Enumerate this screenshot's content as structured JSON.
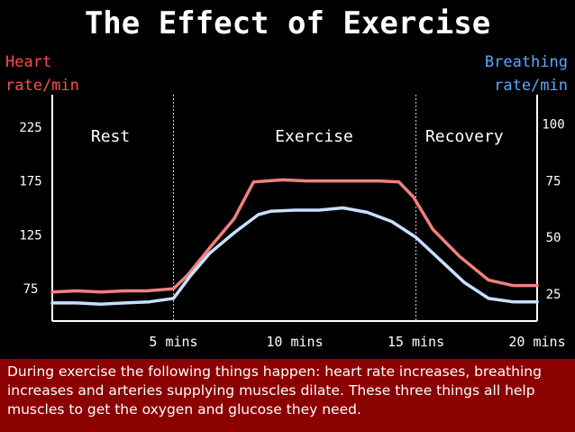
{
  "title": "The Effect of Exercise",
  "left_axis_title": [
    "Heart",
    "rate/min"
  ],
  "right_axis_title": [
    "Breathing",
    "rate/min"
  ],
  "caption": "During exercise the following things happen: heart rate increases, breathing increases and arteries supplying muscles dilate.  These three things all help muscles to get the oxygen and glucose they need.",
  "colors": {
    "heart_line": "#f08080",
    "breathing_line": "#c8e0ff",
    "left_axis_text": "#ff4d4d",
    "right_axis_text": "#5aa8ff",
    "caption_bg": "#8b0000"
  },
  "chart_data": {
    "type": "line",
    "title": "The Effect of Exercise",
    "xlabel": "",
    "phases": [
      "Rest",
      "Exercise",
      "Recovery"
    ],
    "x_ticks": [
      {
        "value": 5,
        "label": "5 mins"
      },
      {
        "value": 10,
        "label": "10 mins"
      },
      {
        "value": 15,
        "label": "15 mins"
      },
      {
        "value": 20,
        "label": "20 mins"
      }
    ],
    "phase_boundaries": [
      5,
      15
    ],
    "xlim": [
      0,
      20
    ],
    "left_axis": {
      "label": "Heart rate/min",
      "ticks": [
        75,
        125,
        175,
        225
      ],
      "ylim": [
        45,
        255
      ]
    },
    "right_axis": {
      "label": "Breathing rate/min",
      "ticks": [
        25,
        50,
        75,
        100
      ],
      "ylim": [
        13,
        113
      ]
    },
    "series": [
      {
        "name": "Heart rate",
        "axis": "left",
        "x": [
          0,
          1,
          2,
          3,
          3.9,
          5,
          5.6,
          6.5,
          7.5,
          8.3,
          9.5,
          10.5,
          12,
          13.5,
          14.3,
          14.9,
          15.7,
          16.8,
          18,
          19,
          20
        ],
        "y": [
          72,
          73,
          72,
          73,
          73,
          75,
          88,
          113,
          140,
          174,
          176,
          175,
          175,
          175,
          174,
          160,
          130,
          105,
          83,
          78,
          78
        ]
      },
      {
        "name": "Breathing rate",
        "axis": "right",
        "x": [
          0,
          1,
          2,
          3,
          4,
          5,
          5.7,
          6.5,
          7.5,
          8.5,
          9,
          10,
          11,
          12,
          13,
          14,
          15,
          16,
          17,
          18,
          19,
          20
        ],
        "y": [
          21,
          21,
          20.5,
          21,
          21.5,
          23,
          33,
          43,
          52,
          60,
          61.5,
          62,
          62,
          63,
          61,
          57,
          50,
          40,
          30,
          23,
          21.5,
          21.5
        ]
      }
    ]
  }
}
